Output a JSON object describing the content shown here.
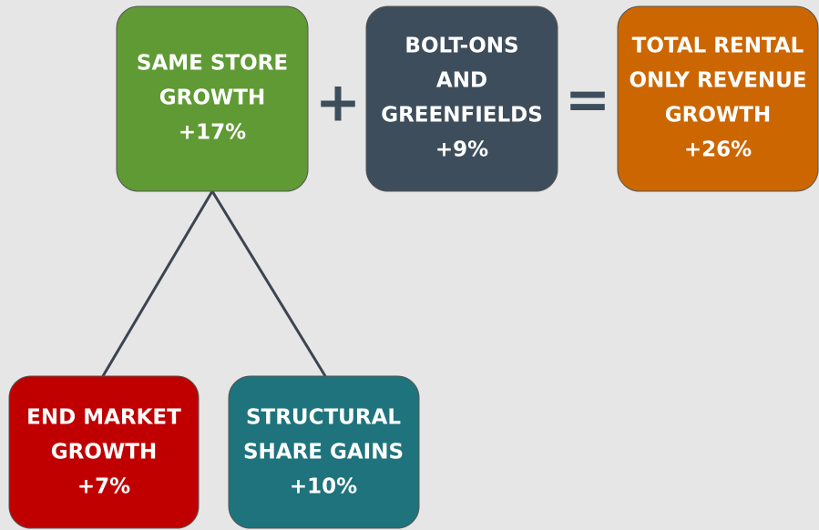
{
  "nodes": [
    {
      "label_lines": [
        "SAME STORE",
        "GROWTH"
      ],
      "value": "+17%"
    },
    {
      "label_lines": [
        "BOLT-ONS",
        "AND",
        "GREENFIELDS"
      ],
      "value": "+9%"
    },
    {
      "label_lines": [
        "TOTAL RENTAL",
        "ONLY REVENUE",
        "GROWTH"
      ],
      "value": "+26%"
    },
    {
      "label_lines": [
        "END MARKET",
        "GROWTH"
      ],
      "value": "+7%"
    },
    {
      "label_lines": [
        "STRUCTURAL",
        "SHARE GAINS"
      ],
      "value": "+10%"
    }
  ],
  "operators": [
    "+",
    "="
  ]
}
